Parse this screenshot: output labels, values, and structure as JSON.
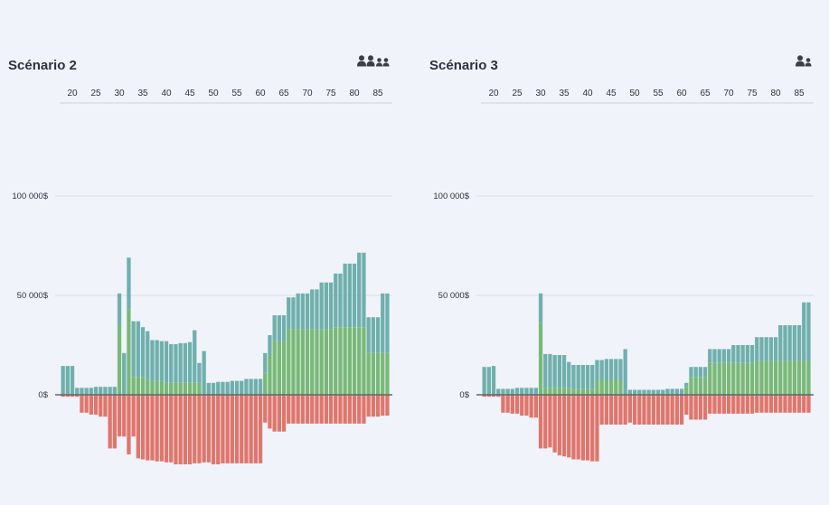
{
  "colors": {
    "teal": "#6fb0ad",
    "green": "#79b978",
    "red": "#df766c",
    "grid": "#d9dce3",
    "zero": "#666666",
    "icon": "#3b3f47"
  },
  "chart_data": [
    {
      "type": "bar",
      "title": "Scénario 2",
      "icon": "family-icon",
      "x_ticks": [
        20,
        25,
        30,
        35,
        40,
        45,
        50,
        55,
        60,
        65,
        70,
        75,
        80,
        85
      ],
      "y_ticks": [
        {
          "value": 0,
          "label": "0$"
        },
        {
          "value": 50000,
          "label": "50 000$"
        },
        {
          "value": 100000,
          "label": "100 000$"
        }
      ],
      "grid": true,
      "x": [
        18,
        19,
        20,
        21,
        22,
        23,
        24,
        25,
        26,
        27,
        28,
        29,
        30,
        31,
        32,
        33,
        34,
        35,
        36,
        37,
        38,
        39,
        40,
        41,
        42,
        43,
        44,
        45,
        46,
        47,
        48,
        49,
        50,
        51,
        52,
        53,
        54,
        55,
        56,
        57,
        58,
        59,
        60,
        61,
        62,
        63,
        64,
        65,
        66,
        67,
        68,
        69,
        70,
        71,
        72,
        73,
        74,
        75,
        76,
        77,
        78,
        79,
        80,
        81,
        82,
        83,
        84,
        85,
        86,
        87
      ],
      "series": [
        {
          "key": "green",
          "values": [
            0,
            0,
            0,
            0,
            0,
            0,
            0,
            0,
            0,
            0,
            0,
            0,
            35000,
            0,
            43000,
            9000,
            9000,
            9000,
            8000,
            7000,
            7000,
            7000,
            6000,
            6000,
            6000,
            6000,
            6000,
            6000,
            6000,
            6000,
            0,
            0,
            0,
            0,
            0,
            0,
            0,
            0,
            0,
            0,
            0,
            0,
            0,
            11000,
            20000,
            27000,
            27000,
            27000,
            33000,
            33000,
            33000,
            33000,
            33000,
            33000,
            33000,
            33000,
            33000,
            33000,
            34000,
            34000,
            34000,
            34000,
            34000,
            34000,
            34000,
            21000,
            21000,
            21000,
            21000,
            21000
          ]
        },
        {
          "key": "teal",
          "values": [
            14500,
            14500,
            14500,
            3500,
            3500,
            3500,
            3500,
            4000,
            4000,
            4000,
            4000,
            4000,
            51000,
            21000,
            69000,
            37000,
            37000,
            34000,
            32000,
            27500,
            27500,
            27000,
            27000,
            25500,
            25500,
            26000,
            26000,
            26500,
            32500,
            16000,
            22000,
            6000,
            6000,
            6500,
            6500,
            6500,
            7000,
            7000,
            7000,
            8000,
            8000,
            8000,
            8000,
            21000,
            30000,
            40000,
            40000,
            40000,
            49000,
            49000,
            51000,
            51000,
            51000,
            53000,
            53000,
            56500,
            56500,
            56500,
            61000,
            61000,
            66000,
            66000,
            66000,
            71500,
            71500,
            39000,
            39000,
            39000,
            51000,
            51000
          ]
        },
        {
          "key": "red",
          "values": [
            -1000,
            -1000,
            -1000,
            -1000,
            -9000,
            -9000,
            -10000,
            -10000,
            -11000,
            -11000,
            -27000,
            -27000,
            -21000,
            -21000,
            -30000,
            -21000,
            -32000,
            -32500,
            -33000,
            -33000,
            -33500,
            -33500,
            -34000,
            -34000,
            -35000,
            -35000,
            -35000,
            -35000,
            -34500,
            -34500,
            -34000,
            -34000,
            -35000,
            -35000,
            -34500,
            -34500,
            -34500,
            -34500,
            -34500,
            -34500,
            -34500,
            -34500,
            -34500,
            -14000,
            -17000,
            -18500,
            -18500,
            -18500,
            -14500,
            -14500,
            -14500,
            -14500,
            -14500,
            -14500,
            -14500,
            -14500,
            -14500,
            -14500,
            -14500,
            -14500,
            -14500,
            -14500,
            -14500,
            -14500,
            -14500,
            -11000,
            -11000,
            -11000,
            -10500,
            -10500
          ]
        }
      ]
    },
    {
      "type": "bar",
      "title": "Scénario 3",
      "icon": "couple-icon",
      "x_ticks": [
        20,
        25,
        30,
        35,
        40,
        45,
        50,
        55,
        60,
        65,
        70,
        75,
        80,
        85
      ],
      "y_ticks": [
        {
          "value": 0,
          "label": "0$"
        },
        {
          "value": 50000,
          "label": "50 000$"
        },
        {
          "value": 100000,
          "label": "100 000$"
        }
      ],
      "grid": true,
      "x": [
        18,
        19,
        20,
        21,
        22,
        23,
        24,
        25,
        26,
        27,
        28,
        29,
        30,
        31,
        32,
        33,
        34,
        35,
        36,
        37,
        38,
        39,
        40,
        41,
        42,
        43,
        44,
        45,
        46,
        47,
        48,
        49,
        50,
        51,
        52,
        53,
        54,
        55,
        56,
        57,
        58,
        59,
        60,
        61,
        62,
        63,
        64,
        65,
        66,
        67,
        68,
        69,
        70,
        71,
        72,
        73,
        74,
        75,
        76,
        77,
        78,
        79,
        80,
        81,
        82,
        83,
        84,
        85,
        86,
        87
      ],
      "series": [
        {
          "key": "green",
          "values": [
            0,
            0,
            0,
            0,
            0,
            0,
            0,
            0,
            0,
            0,
            0,
            0,
            36000,
            3500,
            3500,
            3500,
            3500,
            3500,
            3500,
            3000,
            3000,
            3000,
            3000,
            3000,
            7500,
            7500,
            7500,
            7500,
            7500,
            7500,
            0,
            0,
            0,
            0,
            0,
            0,
            0,
            0,
            0,
            0,
            0,
            0,
            0,
            4000,
            9000,
            9000,
            9000,
            9000,
            16000,
            16000,
            16000,
            16000,
            16000,
            16000,
            16000,
            16000,
            16000,
            16000,
            17000,
            17000,
            17000,
            17000,
            17000,
            17000,
            17000,
            17000,
            17000,
            17000,
            17000,
            17000
          ]
        },
        {
          "key": "teal",
          "values": [
            14000,
            14000,
            14500,
            3000,
            3000,
            3000,
            3000,
            3500,
            3500,
            3500,
            3500,
            3500,
            51000,
            20500,
            20500,
            20000,
            20000,
            20000,
            16500,
            15000,
            15000,
            15000,
            15000,
            15000,
            17500,
            17500,
            18000,
            18000,
            18000,
            18000,
            23000,
            2500,
            2500,
            2500,
            2500,
            2500,
            2500,
            2500,
            2500,
            3000,
            3000,
            3000,
            3000,
            6000,
            14000,
            14000,
            14000,
            14000,
            23000,
            23000,
            23000,
            23000,
            23000,
            25000,
            25000,
            25000,
            25000,
            25000,
            29000,
            29000,
            29000,
            29000,
            29000,
            35000,
            35000,
            35000,
            35000,
            35000,
            46500,
            46500
          ]
        },
        {
          "key": "red",
          "values": [
            -1000,
            -1000,
            -1000,
            -1000,
            -9000,
            -9000,
            -9500,
            -9500,
            -10500,
            -10500,
            -11500,
            -11500,
            -27000,
            -27000,
            -26500,
            -29000,
            -30500,
            -31000,
            -31500,
            -32500,
            -32500,
            -33000,
            -33000,
            -33500,
            -33500,
            -15000,
            -15000,
            -15000,
            -15000,
            -15000,
            -15000,
            -14000,
            -15000,
            -15000,
            -15000,
            -15000,
            -15000,
            -15000,
            -15000,
            -15000,
            -15000,
            -15000,
            -15000,
            -10000,
            -12500,
            -12500,
            -12500,
            -12500,
            -9500,
            -9500,
            -9500,
            -9500,
            -9500,
            -9500,
            -9500,
            -9500,
            -9500,
            -9500,
            -9000,
            -9000,
            -9000,
            -9000,
            -9000,
            -9000,
            -9000,
            -9000,
            -9000,
            -9000,
            -9000,
            -9000
          ]
        }
      ]
    }
  ]
}
